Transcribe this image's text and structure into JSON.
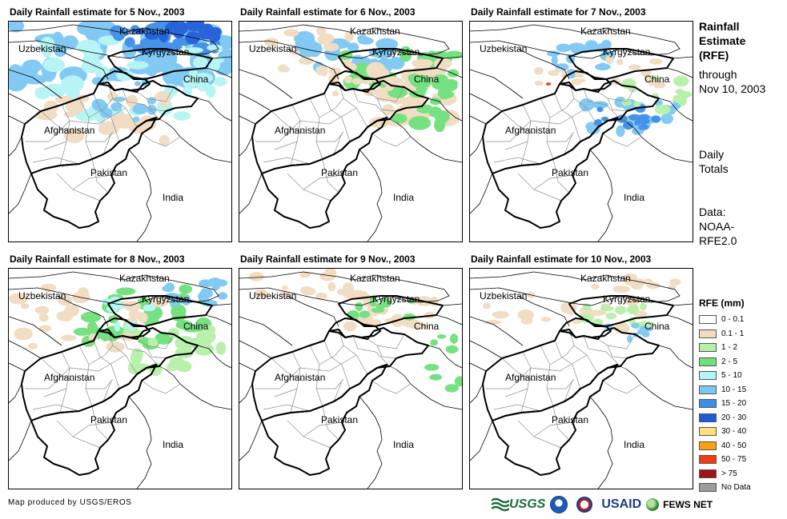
{
  "panels": [
    {
      "title": "Daily Rainfall estimate for 5 Nov., 2003",
      "intensity": 3
    },
    {
      "title": "Daily Rainfall estimate for 6 Nov., 2003",
      "intensity": 2
    },
    {
      "title": "Daily Rainfall estimate for 7 Nov., 2003",
      "intensity": 2
    },
    {
      "title": "Daily Rainfall estimate for 8 Nov., 2003",
      "intensity": 2
    },
    {
      "title": "Daily Rainfall estimate for 9 Nov., 2003",
      "intensity": 1
    },
    {
      "title": "Daily Rainfall estimate for 10 Nov., 2003",
      "intensity": 1
    }
  ],
  "map_labels": {
    "kazakhstan": "Kazakhstan",
    "uzbekistan": "Uzbekistan",
    "kyrgyzstan": "Kyrgyzstan",
    "china": "China",
    "afghanistan": "Afghanistan",
    "pakistan": "Pakistan",
    "india": "India"
  },
  "side": {
    "title_line1": "Rainfall",
    "title_line2": "Estimate",
    "title_line3": "(RFE)",
    "through": "through",
    "date": "Nov 10, 2003",
    "daily1": "Daily",
    "daily2": "Totals",
    "data1": "Data:",
    "data2": "NOAA-",
    "data3": "RFE2.0"
  },
  "legend": {
    "title": "RFE (mm)",
    "items": [
      {
        "label": "0 - 0.1",
        "color": "#ffffff"
      },
      {
        "label": "0.1 - 1",
        "color": "#f0dcc0"
      },
      {
        "label": "1 - 2",
        "color": "#b6f0a8"
      },
      {
        "label": "2 - 5",
        "color": "#6fe07a"
      },
      {
        "label": "5 - 10",
        "color": "#b4f4f4"
      },
      {
        "label": "10 - 15",
        "color": "#7cc8f4"
      },
      {
        "label": "15 - 20",
        "color": "#3c8ee8"
      },
      {
        "label": "20 - 30",
        "color": "#1c5cd8"
      },
      {
        "label": "30 - 40",
        "color": "#fce07c"
      },
      {
        "label": "40 - 50",
        "color": "#fca014"
      },
      {
        "label": "50 - 75",
        "color": "#f43c14"
      },
      {
        "label": "> 75",
        "color": "#a01414"
      },
      {
        "label": "No Data",
        "color": "#9c9c9c"
      }
    ]
  },
  "credit": "Map produced by USGS/EROS",
  "logos": {
    "usgs": "USGS",
    "usaid": "USAID",
    "fews": "FEWS NET"
  }
}
